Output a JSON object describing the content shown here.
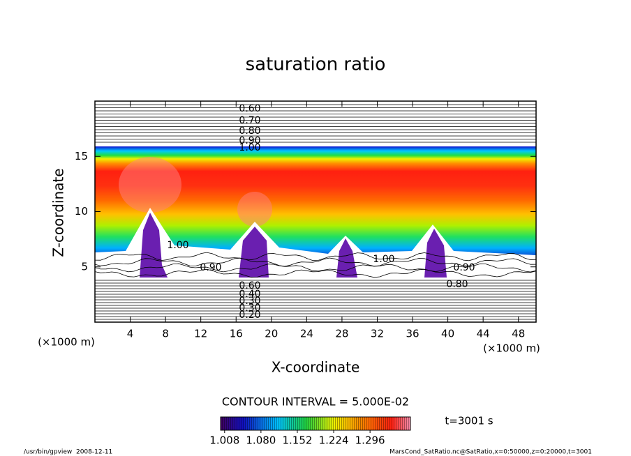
{
  "chart_data": {
    "type": "contour",
    "title": "saturation ratio",
    "x_label": "X-coordinate",
    "y_label": "Z-coordinate",
    "x_unit": "(×1000 m)",
    "y_unit": "(×1000 m)",
    "xlim": [
      0,
      50
    ],
    "ylim": [
      0,
      20
    ],
    "xticks": [
      4,
      8,
      12,
      16,
      20,
      24,
      28,
      32,
      36,
      40,
      44,
      48
    ],
    "yticks": [
      5,
      10,
      15
    ],
    "contour_labels": [
      {
        "value": 0.6,
        "label": "0.60"
      },
      {
        "value": 0.7,
        "label": "0.70"
      },
      {
        "value": 0.8,
        "label": "0.80"
      },
      {
        "value": 0.9,
        "label": "0.90"
      },
      {
        "value": 1.0,
        "label": "1.00"
      },
      {
        "value": 1.0,
        "label": "1.00"
      },
      {
        "value": 0.9,
        "label": "0.90"
      },
      {
        "value": 1.0,
        "label": "1.00"
      },
      {
        "value": 0.9,
        "label": "0.90"
      },
      {
        "value": 0.8,
        "label": "0.80"
      },
      {
        "value": 0.6,
        "label": "0.60"
      },
      {
        "value": 0.4,
        "label": "0.40"
      },
      {
        "value": 0.3,
        "label": "0.30"
      },
      {
        "value": 0.3,
        "label": "0.30"
      },
      {
        "value": 0.2,
        "label": "0.20"
      }
    ],
    "contour_interval_label": "CONTOUR INTERVAL = 5.000E-02",
    "colorbar": {
      "lim": [
        1.0,
        1.376
      ],
      "ticks": [
        1.008,
        {
          "value": 1.08,
          "label": "1.080"
        },
        1.152,
        1.224,
        1.296
      ]
    },
    "time_label": "t=3001 s",
    "footer_left": "/usr/bin/gpview  2008-12-11",
    "footer_right": "MarsCond_SatRatio.nc@SatRatio,x=0:50000,z=0:20000,t=3001"
  }
}
